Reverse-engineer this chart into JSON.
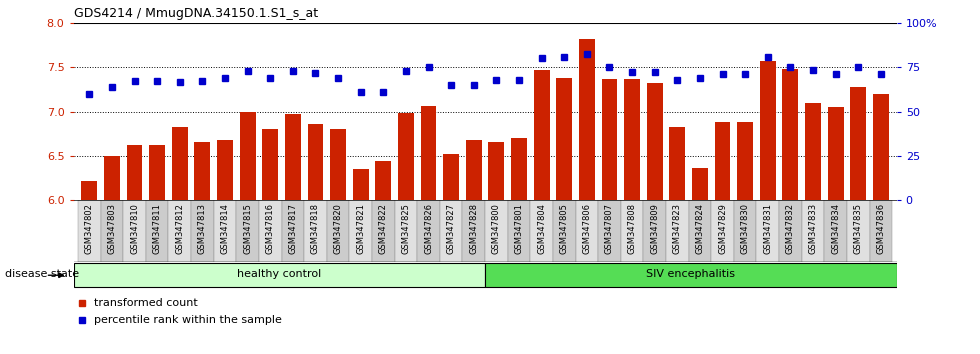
{
  "title": "GDS4214 / MmugDNA.34150.1.S1_s_at",
  "samples": [
    "GSM347802",
    "GSM347803",
    "GSM347810",
    "GSM347811",
    "GSM347812",
    "GSM347813",
    "GSM347814",
    "GSM347815",
    "GSM347816",
    "GSM347817",
    "GSM347818",
    "GSM347820",
    "GSM347821",
    "GSM347822",
    "GSM347825",
    "GSM347826",
    "GSM347827",
    "GSM347828",
    "GSM347800",
    "GSM347801",
    "GSM347804",
    "GSM347805",
    "GSM347806",
    "GSM347807",
    "GSM347808",
    "GSM347809",
    "GSM347823",
    "GSM347824",
    "GSM347829",
    "GSM347830",
    "GSM347831",
    "GSM347832",
    "GSM347833",
    "GSM347834",
    "GSM347835",
    "GSM347836"
  ],
  "bar_values": [
    6.22,
    6.5,
    6.62,
    6.62,
    6.82,
    6.65,
    6.68,
    7.0,
    6.8,
    6.97,
    6.86,
    6.8,
    6.35,
    6.44,
    6.98,
    7.06,
    6.52,
    6.68,
    6.65,
    6.7,
    7.47,
    7.38,
    7.82,
    7.37,
    7.37,
    7.32,
    6.82,
    6.36,
    6.88,
    6.88,
    7.57,
    7.48,
    7.1,
    7.05,
    7.28,
    7.2
  ],
  "dot_values": [
    7.2,
    7.28,
    7.35,
    7.35,
    7.33,
    7.34,
    7.38,
    7.46,
    7.38,
    7.46,
    7.44,
    7.38,
    7.22,
    7.22,
    7.46,
    7.5,
    7.3,
    7.3,
    7.36,
    7.36,
    7.6,
    7.62,
    7.65,
    7.5,
    7.45,
    7.45,
    7.36,
    7.38,
    7.42,
    7.42,
    7.62,
    7.5,
    7.47,
    7.42,
    7.5,
    7.42
  ],
  "healthy_count": 18,
  "bar_color": "#cc2200",
  "dot_color": "#0000cc",
  "ylim_left": [
    6.0,
    8.0
  ],
  "ylim_right": [
    0,
    100
  ],
  "yticks_left": [
    6.0,
    6.5,
    7.0,
    7.5,
    8.0
  ],
  "yticks_right": [
    0,
    25,
    50,
    75,
    100
  ],
  "ytick_labels_right": [
    "0",
    "25",
    "50",
    "75",
    "100%"
  ],
  "healthy_label": "healthy control",
  "siv_label": "SIV encephalitis",
  "disease_state_label": "disease state",
  "legend_bar_label": "transformed count",
  "legend_dot_label": "percentile rank within the sample",
  "healthy_color": "#ccffcc",
  "siv_color": "#55dd55",
  "xtick_bg": "#d8d8d8",
  "plot_bg": "#ffffff"
}
